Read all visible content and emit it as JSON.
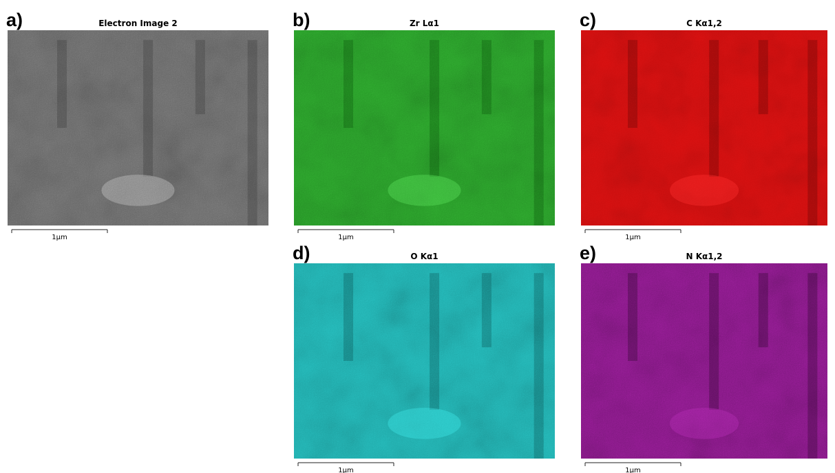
{
  "panels": [
    {
      "letter": "a)",
      "title": "Electron Image 2",
      "scale_label": "1μm"
    },
    {
      "letter": "b)",
      "title": "Zr Lα1",
      "scale_label": "1μm"
    },
    {
      "letter": "c)",
      "title": "C Kα1,2",
      "scale_label": "1μm"
    },
    {
      "letter": "d)",
      "title": "O Kα1",
      "scale_label": "1μm"
    },
    {
      "letter": "e)",
      "title": "N Kα1,2",
      "scale_label": "1μm"
    }
  ]
}
